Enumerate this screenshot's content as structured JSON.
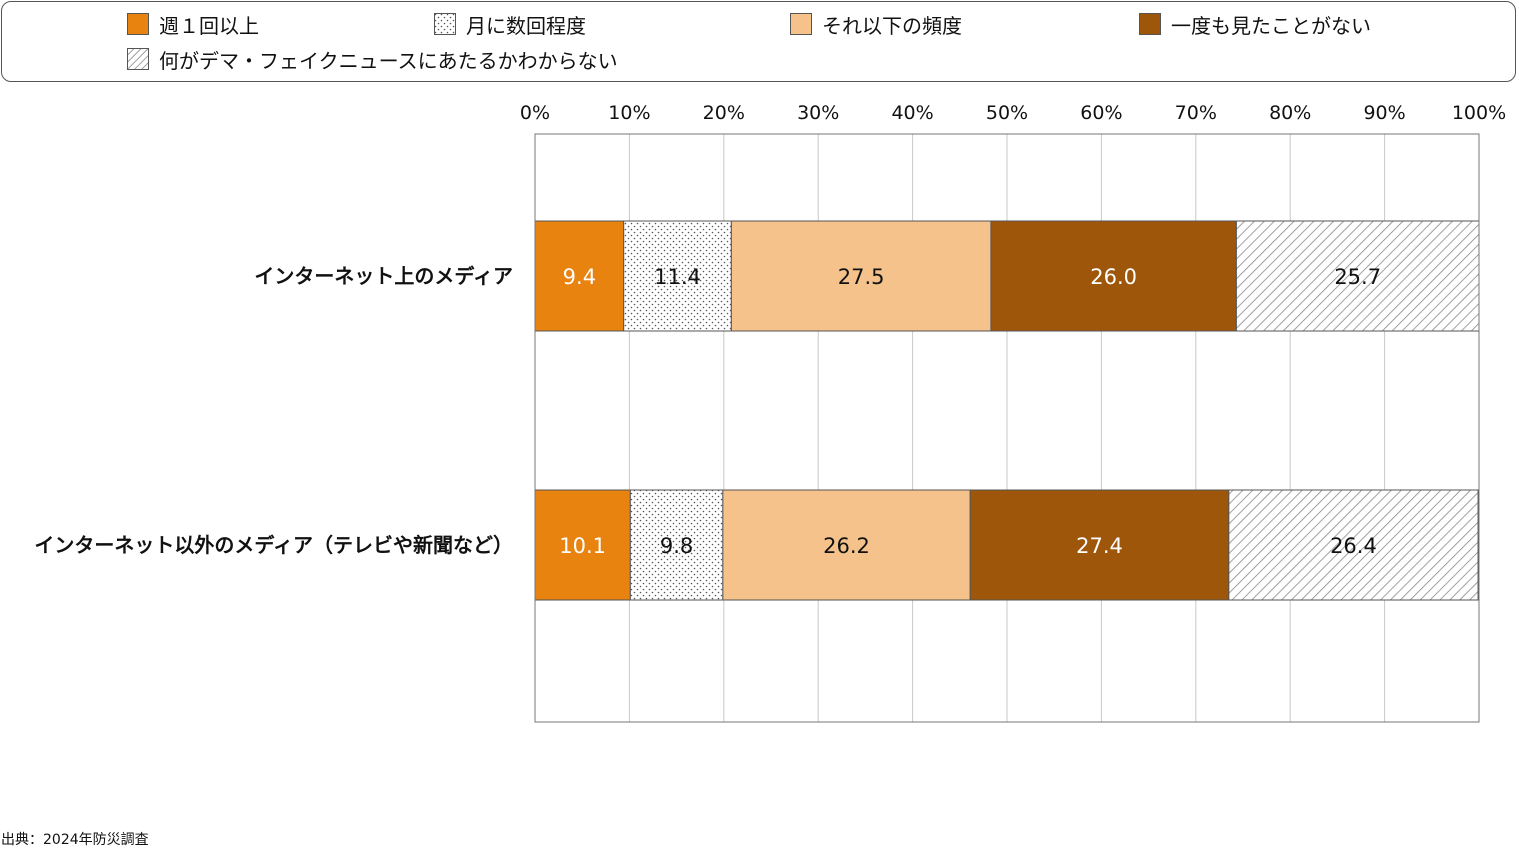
{
  "chart_data": {
    "type": "bar",
    "orientation": "horizontal",
    "stacked": true,
    "percent_stacked": true,
    "categories": [
      "インターネット上のメディア",
      "インターネット以外のメディア（テレビや新聞など）"
    ],
    "series": [
      {
        "name": "週１回以上",
        "values": [
          9.4,
          10.1
        ],
        "color": "#e8830f",
        "pattern": "solid"
      },
      {
        "name": "月に数回程度",
        "values": [
          11.4,
          9.8
        ],
        "color": "#ffffff",
        "pattern": "dots"
      },
      {
        "name": "それ以下の頻度",
        "values": [
          27.5,
          26.2
        ],
        "color": "#f5c28c",
        "pattern": "solid"
      },
      {
        "name": "一度も見たことがない",
        "values": [
          26.0,
          27.4
        ],
        "color": "#9e560a",
        "pattern": "solid"
      },
      {
        "name": "何がデマ・フェイクニュースにあたるかわからない",
        "values": [
          25.7,
          26.4
        ],
        "color": "#ffffff",
        "pattern": "hatch"
      }
    ],
    "xlim": [
      0,
      100
    ],
    "xticks": [
      "0%",
      "10%",
      "20%",
      "30%",
      "40%",
      "50%",
      "60%",
      "70%",
      "80%",
      "90%",
      "100%"
    ],
    "grid": true,
    "legend_position": "top",
    "source": "出典：2024年防災調査"
  }
}
